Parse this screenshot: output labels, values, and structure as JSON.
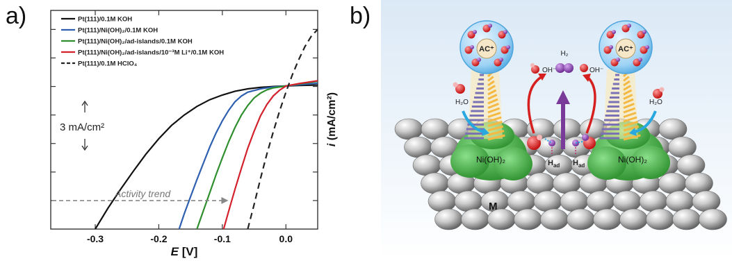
{
  "panels": {
    "a": "a)",
    "b": "b)"
  },
  "chart_data": {
    "type": "line",
    "xlabel": "E [V]",
    "ylabel": "i (mA/cm²)",
    "xlim": [
      -0.37,
      0.05
    ],
    "ylim": [
      -15,
      8
    ],
    "x_ticks": [
      -0.3,
      -0.2,
      -0.1,
      0.0
    ],
    "x_tick_labels": [
      "-0.3",
      "-0.2",
      "-0.1",
      "0.0"
    ],
    "y_ticks": [
      -12,
      -9,
      -6,
      -3,
      0,
      3,
      6
    ],
    "series": [
      {
        "name": "Pt(111)/0.1M KOH",
        "color": "#111111",
        "dash": "solid",
        "points": [
          [
            -0.3,
            -15
          ],
          [
            -0.28,
            -12.8
          ],
          [
            -0.26,
            -10.8
          ],
          [
            -0.24,
            -8.9
          ],
          [
            -0.22,
            -7.1
          ],
          [
            -0.2,
            -5.5
          ],
          [
            -0.18,
            -4.1
          ],
          [
            -0.16,
            -3.0
          ],
          [
            -0.14,
            -2.1
          ],
          [
            -0.12,
            -1.4
          ],
          [
            -0.1,
            -0.9
          ],
          [
            -0.08,
            -0.5
          ],
          [
            -0.06,
            -0.25
          ],
          [
            -0.04,
            -0.1
          ],
          [
            -0.02,
            0.0
          ],
          [
            0.0,
            0.05
          ],
          [
            0.02,
            0.1
          ],
          [
            0.05,
            0.15
          ]
        ]
      },
      {
        "name": "Pt(111)/Ni(OH)₂/0.1M KOH",
        "color": "#2e5fb0",
        "dash": "solid",
        "points": [
          [
            -0.168,
            -15
          ],
          [
            -0.16,
            -13.4
          ],
          [
            -0.15,
            -11.6
          ],
          [
            -0.14,
            -9.8
          ],
          [
            -0.13,
            -8.1
          ],
          [
            -0.12,
            -6.4
          ],
          [
            -0.11,
            -4.9
          ],
          [
            -0.1,
            -3.6
          ],
          [
            -0.09,
            -2.5
          ],
          [
            -0.08,
            -1.6
          ],
          [
            -0.07,
            -1.0
          ],
          [
            -0.06,
            -0.6
          ],
          [
            -0.04,
            -0.25
          ],
          [
            -0.02,
            -0.05
          ],
          [
            0.0,
            0.05
          ],
          [
            0.05,
            0.35
          ]
        ]
      },
      {
        "name": "Pt(111)/Ni(OH)₂/ad-islands/0.1M KOH",
        "color": "#2f8f2f",
        "dash": "solid",
        "points": [
          [
            -0.14,
            -15
          ],
          [
            -0.13,
            -13.1
          ],
          [
            -0.12,
            -11.2
          ],
          [
            -0.11,
            -9.3
          ],
          [
            -0.1,
            -7.5
          ],
          [
            -0.09,
            -5.8
          ],
          [
            -0.08,
            -4.3
          ],
          [
            -0.07,
            -3.0
          ],
          [
            -0.06,
            -2.0
          ],
          [
            -0.05,
            -1.2
          ],
          [
            -0.04,
            -0.7
          ],
          [
            -0.03,
            -0.35
          ],
          [
            -0.02,
            -0.15
          ],
          [
            0.0,
            0.05
          ],
          [
            0.05,
            0.55
          ]
        ]
      },
      {
        "name": "Pt(111)/Ni(OH)₂/ad-islands/10⁻³M Li⁺/0.1M KOH",
        "color": "#d3212c",
        "dash": "solid",
        "points": [
          [
            -0.098,
            -15
          ],
          [
            -0.09,
            -13.1
          ],
          [
            -0.08,
            -10.8
          ],
          [
            -0.07,
            -8.6
          ],
          [
            -0.06,
            -6.5
          ],
          [
            -0.05,
            -4.7
          ],
          [
            -0.04,
            -3.1
          ],
          [
            -0.03,
            -1.9
          ],
          [
            -0.02,
            -1.0
          ],
          [
            -0.01,
            -0.4
          ],
          [
            0.0,
            0.05
          ],
          [
            0.02,
            0.3
          ],
          [
            0.05,
            0.6
          ]
        ]
      },
      {
        "name": "Pt(111)/0.1M HClO₄",
        "color": "#222222",
        "dash": "dashed",
        "points": [
          [
            -0.06,
            -15
          ],
          [
            -0.05,
            -12.4
          ],
          [
            -0.04,
            -9.7
          ],
          [
            -0.03,
            -7.1
          ],
          [
            -0.02,
            -4.8
          ],
          [
            -0.01,
            -2.6
          ],
          [
            0.0,
            -0.6
          ],
          [
            0.01,
            1.2
          ],
          [
            0.02,
            2.8
          ],
          [
            0.03,
            4.2
          ],
          [
            0.04,
            5.3
          ],
          [
            0.05,
            6.0
          ]
        ]
      }
    ],
    "legend": "top-left",
    "annotations": {
      "scale_bar": "3 mA/cm²",
      "trend": "Activity trend",
      "trend_from_x": -0.165,
      "trend_to_x": -0.095,
      "trend_y": -12
    }
  },
  "diagram": {
    "cation_label": "AC⁺",
    "h2o": "H₂O",
    "oh": "OH⁻",
    "h2": "H₂",
    "had": "H",
    "had_sub": "ad",
    "nioh": "Ni(OH)₂",
    "metal": "M",
    "colors": {
      "nioh": "#3fb33f",
      "oh": "#e02020",
      "h": "#8a3fb3",
      "arrow_purple": "#7a3a9a",
      "arrow_red": "#d62020",
      "arrow_blue": "#29a8e0"
    }
  }
}
